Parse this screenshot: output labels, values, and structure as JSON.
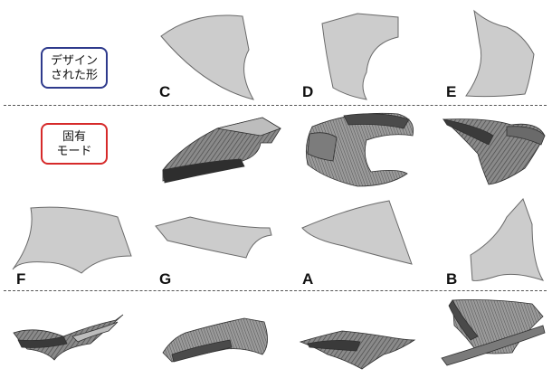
{
  "badges": {
    "design": {
      "line1": "デザイン",
      "line2": "された形"
    },
    "mode": {
      "line1": "固有",
      "line2": "モード"
    }
  },
  "shape_labels": {
    "C": "C",
    "D": "D",
    "E": "E",
    "F": "F",
    "G": "G",
    "A": "A",
    "B": "B"
  },
  "colors": {
    "shape_fill": "#cccccc",
    "shape_stroke": "#6a6a6a",
    "mode_dark": "#3a3a3a",
    "mode_mid": "#6e6e6e",
    "mode_light": "#a8a8a8",
    "badge_design_border": "#2e3a8c",
    "badge_mode_border": "#d62a2a",
    "divider": "#555555"
  }
}
